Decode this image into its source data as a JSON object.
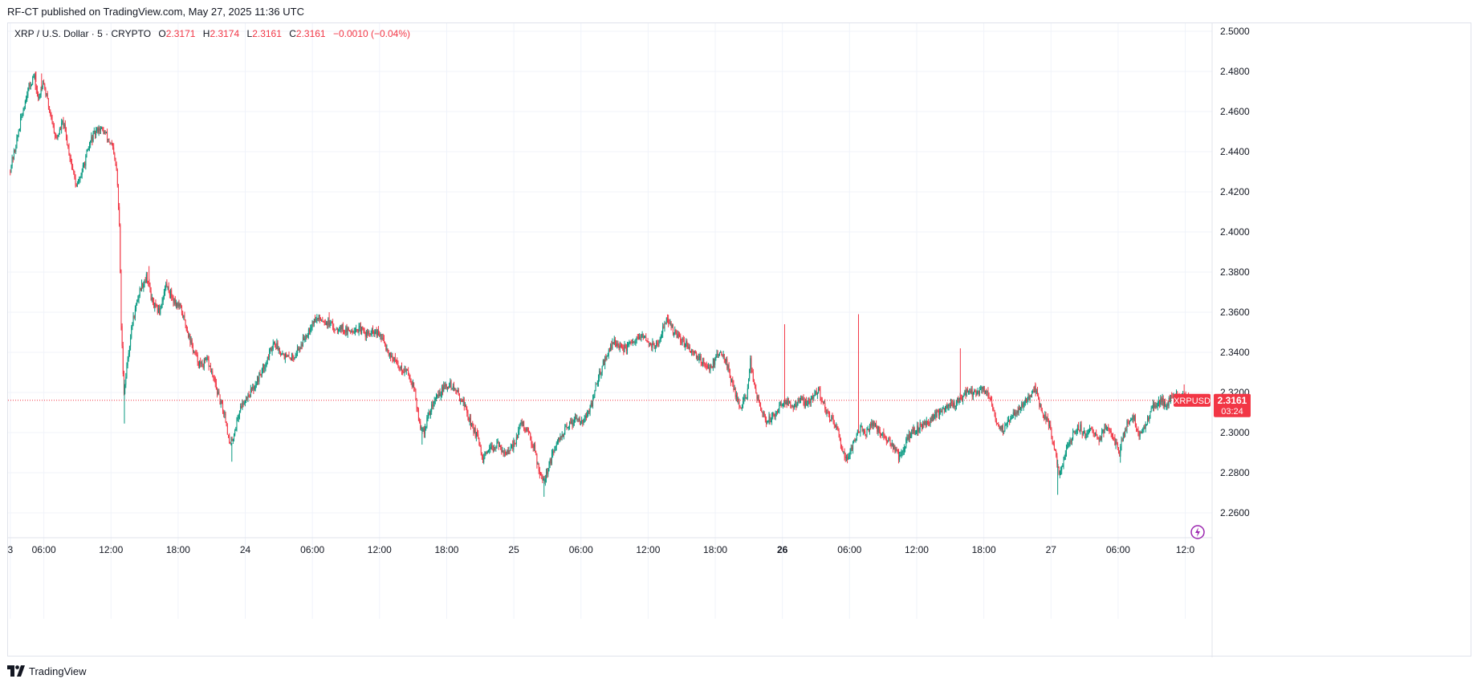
{
  "header": {
    "published": "RF-CT published on TradingView.com, May 27, 2025 11:36 UTC"
  },
  "legend": {
    "symbol": "XRP / U.S. Dollar · 5 · CRYPTO",
    "open_label": "O",
    "open": "2.3171",
    "high_label": "H",
    "high": "2.3174",
    "low_label": "L",
    "low": "2.3161",
    "close_label": "C",
    "close": "2.3161",
    "change": "−0.0010 (−0.04%)"
  },
  "price_badge": {
    "ticker": "XRPUSD",
    "price": "2.3161",
    "countdown": "03:24"
  },
  "footer": {
    "brand": "TradingView"
  },
  "colors": {
    "up": "#089981",
    "down": "#f23645",
    "grid": "#f0f3fa",
    "price_line": "#f23645"
  },
  "chart_data": {
    "type": "candlestick",
    "symbol": "XRP / U.S. Dollar",
    "interval": "5",
    "ylim": [
      2.25,
      2.51
    ],
    "y_ticks": [
      "2.5000",
      "2.4800",
      "2.4600",
      "2.4400",
      "2.4200",
      "2.4000",
      "2.3800",
      "2.3600",
      "2.3400",
      "2.3200",
      "2.3000",
      "2.2800",
      "2.2600"
    ],
    "x_ticks": [
      {
        "label": "3",
        "hours": 0,
        "bold": false
      },
      {
        "label": "06:00",
        "hours": 3,
        "bold": false
      },
      {
        "label": "12:00",
        "hours": 9,
        "bold": false
      },
      {
        "label": "18:00",
        "hours": 15,
        "bold": false
      },
      {
        "label": "24",
        "hours": 21,
        "bold": false
      },
      {
        "label": "06:00",
        "hours": 27,
        "bold": false
      },
      {
        "label": "12:00",
        "hours": 33,
        "bold": false
      },
      {
        "label": "18:00",
        "hours": 39,
        "bold": false
      },
      {
        "label": "25",
        "hours": 45,
        "bold": false
      },
      {
        "label": "06:00",
        "hours": 51,
        "bold": false
      },
      {
        "label": "12:00",
        "hours": 57,
        "bold": false
      },
      {
        "label": "18:00",
        "hours": 63,
        "bold": false
      },
      {
        "label": "26",
        "hours": 69,
        "bold": true
      },
      {
        "label": "06:00",
        "hours": 75,
        "bold": false
      },
      {
        "label": "12:00",
        "hours": 81,
        "bold": false
      },
      {
        "label": "18:00",
        "hours": 87,
        "bold": false
      },
      {
        "label": "27",
        "hours": 93,
        "bold": false
      },
      {
        "label": "06:00",
        "hours": 99,
        "bold": false
      },
      {
        "label": "12:0",
        "hours": 105,
        "bold": false
      }
    ],
    "x_range_hours": [
      -0.2,
      107.4
    ],
    "bar_interval_hours": 0.0833,
    "path_points": [
      [
        0.0,
        2.43
      ],
      [
        0.5,
        2.441
      ],
      [
        1.0,
        2.455
      ],
      [
        1.6,
        2.47
      ],
      [
        2.2,
        2.478
      ],
      [
        2.6,
        2.465
      ],
      [
        3.0,
        2.476
      ],
      [
        3.5,
        2.463
      ],
      [
        4.2,
        2.446
      ],
      [
        4.8,
        2.455
      ],
      [
        5.4,
        2.438
      ],
      [
        6.0,
        2.422
      ],
      [
        6.6,
        2.432
      ],
      [
        7.3,
        2.446
      ],
      [
        8.0,
        2.452
      ],
      [
        8.6,
        2.449
      ],
      [
        9.2,
        2.442
      ],
      [
        9.6,
        2.43
      ],
      [
        9.85,
        2.4
      ],
      [
        10.0,
        2.352
      ],
      [
        10.25,
        2.32
      ],
      [
        10.6,
        2.338
      ],
      [
        11.0,
        2.355
      ],
      [
        11.7,
        2.372
      ],
      [
        12.3,
        2.378
      ],
      [
        12.8,
        2.364
      ],
      [
        13.4,
        2.36
      ],
      [
        14.0,
        2.374
      ],
      [
        14.7,
        2.366
      ],
      [
        15.3,
        2.362
      ],
      [
        15.9,
        2.351
      ],
      [
        16.5,
        2.34
      ],
      [
        17.1,
        2.333
      ],
      [
        17.7,
        2.336
      ],
      [
        18.3,
        2.326
      ],
      [
        18.8,
        2.316
      ],
      [
        19.3,
        2.308
      ],
      [
        19.7,
        2.293
      ],
      [
        20.1,
        2.3
      ],
      [
        20.6,
        2.312
      ],
      [
        21.2,
        2.318
      ],
      [
        21.8,
        2.322
      ],
      [
        22.4,
        2.329
      ],
      [
        23.0,
        2.336
      ],
      [
        23.6,
        2.345
      ],
      [
        24.2,
        2.341
      ],
      [
        24.8,
        2.337
      ],
      [
        25.4,
        2.338
      ],
      [
        26.0,
        2.343
      ],
      [
        26.6,
        2.35
      ],
      [
        27.2,
        2.356
      ],
      [
        27.8,
        2.357
      ],
      [
        28.4,
        2.355
      ],
      [
        29.0,
        2.352
      ],
      [
        29.6,
        2.353
      ],
      [
        30.2,
        2.35
      ],
      [
        30.8,
        2.352
      ],
      [
        31.4,
        2.351
      ],
      [
        32.0,
        2.349
      ],
      [
        32.6,
        2.35
      ],
      [
        33.2,
        2.348
      ],
      [
        33.8,
        2.341
      ],
      [
        34.4,
        2.336
      ],
      [
        35.0,
        2.332
      ],
      [
        35.6,
        2.33
      ],
      [
        36.2,
        2.322
      ],
      [
        36.6,
        2.305
      ],
      [
        37.0,
        2.3
      ],
      [
        37.6,
        2.311
      ],
      [
        38.2,
        2.318
      ],
      [
        38.8,
        2.322
      ],
      [
        39.4,
        2.324
      ],
      [
        40.0,
        2.32
      ],
      [
        40.6,
        2.315
      ],
      [
        41.2,
        2.305
      ],
      [
        41.8,
        2.298
      ],
      [
        42.3,
        2.286
      ],
      [
        42.8,
        2.29
      ],
      [
        43.4,
        2.294
      ],
      [
        44.0,
        2.292
      ],
      [
        44.6,
        2.289
      ],
      [
        45.2,
        2.296
      ],
      [
        45.8,
        2.305
      ],
      [
        46.3,
        2.3
      ],
      [
        46.9,
        2.293
      ],
      [
        47.3,
        2.282
      ],
      [
        47.8,
        2.276
      ],
      [
        48.3,
        2.285
      ],
      [
        48.9,
        2.294
      ],
      [
        49.5,
        2.3
      ],
      [
        50.1,
        2.304
      ],
      [
        50.7,
        2.308
      ],
      [
        51.3,
        2.306
      ],
      [
        51.9,
        2.311
      ],
      [
        52.4,
        2.323
      ],
      [
        52.9,
        2.332
      ],
      [
        53.5,
        2.34
      ],
      [
        54.1,
        2.346
      ],
      [
        54.7,
        2.341
      ],
      [
        55.3,
        2.343
      ],
      [
        55.9,
        2.345
      ],
      [
        56.5,
        2.348
      ],
      [
        57.1,
        2.345
      ],
      [
        57.7,
        2.343
      ],
      [
        58.2,
        2.346
      ],
      [
        58.6,
        2.357
      ],
      [
        59.0,
        2.354
      ],
      [
        59.6,
        2.348
      ],
      [
        60.2,
        2.345
      ],
      [
        60.8,
        2.342
      ],
      [
        61.4,
        2.339
      ],
      [
        62.0,
        2.335
      ],
      [
        62.6,
        2.332
      ],
      [
        63.2,
        2.338
      ],
      [
        63.8,
        2.34
      ],
      [
        64.3,
        2.33
      ],
      [
        64.8,
        2.321
      ],
      [
        65.3,
        2.313
      ],
      [
        65.9,
        2.318
      ],
      [
        66.2,
        2.336
      ],
      [
        66.6,
        2.323
      ],
      [
        67.0,
        2.314
      ],
      [
        67.6,
        2.305
      ],
      [
        68.2,
        2.308
      ],
      [
        68.8,
        2.313
      ],
      [
        69.4,
        2.316
      ],
      [
        70.0,
        2.312
      ],
      [
        70.6,
        2.317
      ],
      [
        71.2,
        2.314
      ],
      [
        71.9,
        2.318
      ],
      [
        72.3,
        2.322
      ],
      [
        72.8,
        2.313
      ],
      [
        73.4,
        2.307
      ],
      [
        74.0,
        2.3
      ],
      [
        74.4,
        2.292
      ],
      [
        74.9,
        2.287
      ],
      [
        75.4,
        2.295
      ],
      [
        76.0,
        2.302
      ],
      [
        76.6,
        2.3
      ],
      [
        77.2,
        2.305
      ],
      [
        77.8,
        2.3
      ],
      [
        78.4,
        2.296
      ],
      [
        79.0,
        2.293
      ],
      [
        79.6,
        2.287
      ],
      [
        80.2,
        2.296
      ],
      [
        80.8,
        2.301
      ],
      [
        81.4,
        2.303
      ],
      [
        82.0,
        2.305
      ],
      [
        82.6,
        2.308
      ],
      [
        83.2,
        2.311
      ],
      [
        83.8,
        2.314
      ],
      [
        84.4,
        2.314
      ],
      [
        85.0,
        2.317
      ],
      [
        85.6,
        2.321
      ],
      [
        86.2,
        2.319
      ]
    ],
    "last_close": 2.3161,
    "min_wicks": [
      [
        10.2,
        2.3045
      ],
      [
        19.8,
        2.2855
      ],
      [
        36.8,
        2.294
      ],
      [
        47.7,
        2.268
      ],
      [
        93.6,
        2.269
      ],
      [
        99.2,
        2.285
      ]
    ],
    "max_wicks": [
      [
        2.3,
        2.48
      ],
      [
        2.8,
        2.479
      ],
      [
        12.4,
        2.383
      ],
      [
        28.5,
        2.36
      ],
      [
        69.2,
        2.354
      ],
      [
        75.8,
        2.359
      ],
      [
        84.9,
        2.342
      ],
      [
        91.6,
        2.325
      ],
      [
        104.9,
        2.324
      ]
    ]
  }
}
